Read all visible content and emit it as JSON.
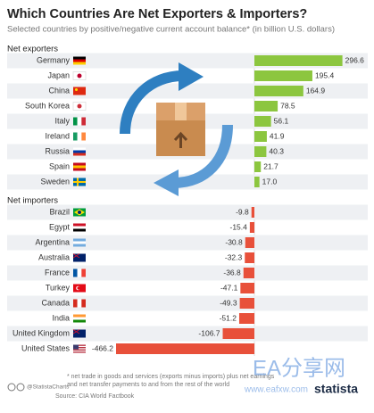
{
  "chart_data": {
    "type": "bar",
    "title": "Which Countries Are Net Exporters & Importers?",
    "subtitle": "Selected countries by positive/negative current account balance* (in billion U.S. dollars)",
    "series": [
      {
        "name": "Net exporters",
        "color": "#8cc63f",
        "categories": [
          "Germany",
          "Japan",
          "China",
          "South Korea",
          "Italy",
          "Ireland",
          "Russia",
          "Spain",
          "Sweden"
        ],
        "values": [
          296.6,
          195.4,
          164.9,
          78.5,
          56.1,
          41.9,
          40.3,
          21.7,
          17
        ],
        "value_labels": [
          "296.6",
          "195.4",
          "164.9",
          "78.5",
          "56.1",
          "41.9",
          "40.3",
          "21.7",
          "17.0"
        ]
      },
      {
        "name": "Net importers",
        "color": "#e8503a",
        "categories": [
          "Brazil",
          "Egypt",
          "Argentina",
          "Australia",
          "France",
          "Turkey",
          "Canada",
          "India",
          "United Kingdom",
          "United States"
        ],
        "values": [
          -9.8,
          -15.4,
          -30.8,
          -32.3,
          -36.8,
          -47.1,
          -49.3,
          -51.2,
          -106.7,
          -466.2
        ],
        "value_labels": [
          "-9.8",
          "-15.4",
          "-30.8",
          "-32.3",
          "-36.8",
          "-47.1",
          "-49.3",
          "-51.2",
          "-106.7",
          "-466.2"
        ]
      }
    ],
    "notes": [
      "* net trade in goods and services (exports minus imports) plus net earnings",
      "and net transfer payments to and from the rest of the world"
    ],
    "source": "Source: CIA World Factbook",
    "credit": "@StatistaCharts",
    "brand": "statista",
    "watermark": [
      "EA分享网",
      "www.eafxw.com"
    ]
  }
}
